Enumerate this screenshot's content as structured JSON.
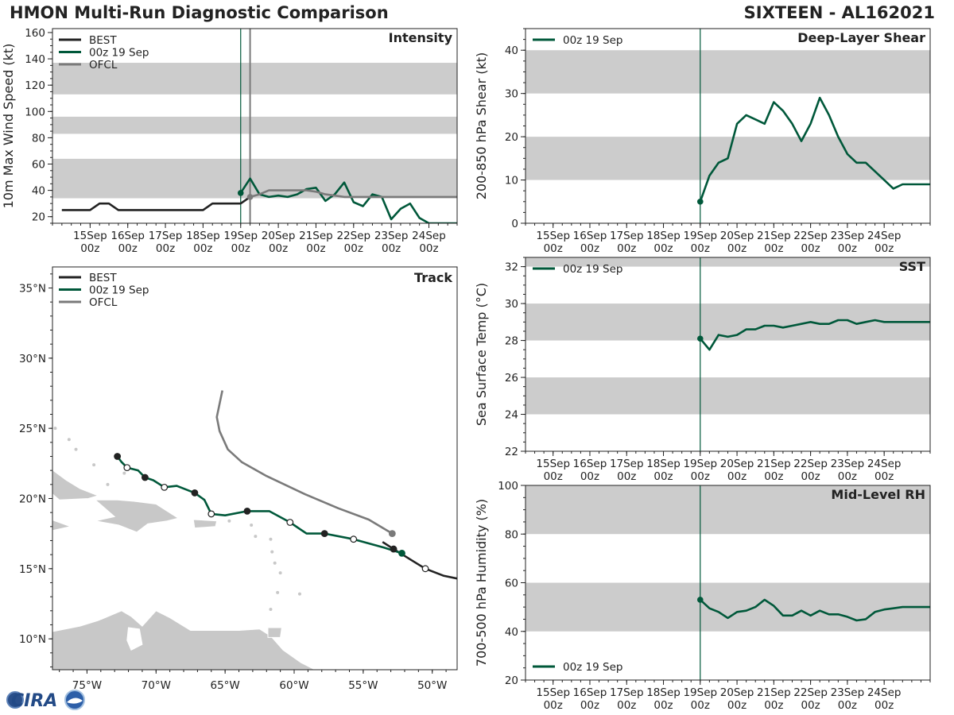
{
  "header": {
    "title_left": "HMON Multi-Run Diagnostic Comparison",
    "title_right": "SIXTEEN - AL162021"
  },
  "logo": {
    "text": "CIRA"
  },
  "colors": {
    "best": "#222222",
    "run": "#00583a",
    "ofcl": "#7a7a7a",
    "band": "#cccccc",
    "land": "#c8c8c8"
  },
  "chart_data": [
    {
      "id": "intensity",
      "type": "line",
      "title": "Intensity",
      "ylabel": "10m Max Wind Speed (kt)",
      "ylim": [
        15,
        163
      ],
      "yticks": [
        20,
        40,
        60,
        80,
        100,
        120,
        140,
        160
      ],
      "xlim": [
        -1.0,
        9.75
      ],
      "x_tick_labels": [
        [
          "15Sep",
          "00z"
        ],
        [
          "16Sep",
          "00z"
        ],
        [
          "17Sep",
          "00z"
        ],
        [
          "18Sep",
          "00z"
        ],
        [
          "19Sep",
          "00z"
        ],
        [
          "20Sep",
          "00z"
        ],
        [
          "21Sep",
          "00z"
        ],
        [
          "22Sep",
          "00z"
        ],
        [
          "23Sep",
          "00z"
        ],
        [
          "24Sep",
          "00z"
        ]
      ],
      "bands": [
        [
          34,
          64
        ],
        [
          83,
          96
        ],
        [
          113,
          137
        ]
      ],
      "vlines": [
        {
          "x": 4.0,
          "color": "run"
        },
        {
          "x": 4.25,
          "color": "ofcl"
        }
      ],
      "legend": [
        "BEST",
        "00z 19 Sep",
        "OFCL"
      ],
      "series": [
        {
          "name": "BEST",
          "color": "best",
          "x": [
            -0.75,
            -0.5,
            -0.25,
            0,
            0.25,
            0.5,
            0.75,
            1,
            1.25,
            1.5,
            1.75,
            2,
            2.25,
            2.5,
            2.75,
            3,
            3.25,
            3.5,
            3.75,
            4,
            4.25
          ],
          "y": [
            25,
            25,
            25,
            25,
            30,
            30,
            25,
            25,
            25,
            25,
            25,
            25,
            25,
            25,
            25,
            25,
            30,
            30,
            30,
            30,
            35
          ]
        },
        {
          "name": "00z 19 Sep",
          "color": "run",
          "x": [
            4,
            4.25,
            4.5,
            4.75,
            5,
            5.25,
            5.5,
            5.75,
            6,
            6.25,
            6.5,
            6.75,
            7,
            7.25,
            7.5,
            7.75,
            8,
            8.25,
            8.5,
            8.75,
            9,
            9.25,
            9.5,
            9.75
          ],
          "y": [
            38,
            49,
            37,
            35,
            36,
            35,
            37,
            41,
            42,
            32,
            37,
            46,
            31,
            28,
            37,
            35,
            18,
            26,
            30,
            19,
            15,
            15,
            15,
            15
          ],
          "start_marker": true
        },
        {
          "name": "OFCL",
          "color": "ofcl",
          "x": [
            4.25,
            4.5,
            4.75,
            5,
            5.25,
            5.5,
            5.75,
            6,
            6.25,
            6.5,
            6.75,
            7,
            7.25,
            7.5,
            7.75,
            8,
            8.25,
            8.5,
            8.75,
            9,
            9.25,
            9.5,
            9.75
          ],
          "y": [
            35,
            37,
            40,
            40,
            40,
            40,
            40,
            39,
            37,
            36,
            35,
            35,
            35,
            35,
            35,
            35,
            35,
            35,
            35,
            35,
            35,
            35,
            35
          ],
          "start_marker": true
        }
      ]
    },
    {
      "id": "shear",
      "type": "line",
      "title": "Deep-Layer Shear",
      "ylabel": "200-850 hPa Shear (kt)",
      "ylim": [
        0,
        45
      ],
      "yticks": [
        0,
        10,
        20,
        30,
        40
      ],
      "xlim": [
        -0.75,
        10.25
      ],
      "x_tick_labels": [
        [
          "15Sep",
          "00z"
        ],
        [
          "16Sep",
          "00z"
        ],
        [
          "17Sep",
          "00z"
        ],
        [
          "18Sep",
          "00z"
        ],
        [
          "19Sep",
          "00z"
        ],
        [
          "20Sep",
          "00z"
        ],
        [
          "21Sep",
          "00z"
        ],
        [
          "22Sep",
          "00z"
        ],
        [
          "23Sep",
          "00z"
        ],
        [
          "24Sep",
          "00z"
        ]
      ],
      "bands": [
        [
          10,
          20
        ],
        [
          30,
          40
        ]
      ],
      "vlines": [
        {
          "x": 4.0,
          "color": "run"
        }
      ],
      "legend": [
        "00z 19 Sep"
      ],
      "series": [
        {
          "name": "00z 19 Sep",
          "color": "run",
          "x": [
            4,
            4.25,
            4.5,
            4.75,
            5,
            5.25,
            5.5,
            5.75,
            6,
            6.25,
            6.5,
            6.75,
            7,
            7.25,
            7.5,
            7.75,
            8,
            8.25,
            8.5,
            8.75,
            9,
            9.25,
            9.5,
            9.75,
            10,
            10.25
          ],
          "y": [
            5,
            11,
            14,
            15,
            23,
            25,
            24,
            23,
            28,
            26,
            23,
            19,
            23,
            29,
            25,
            20,
            16,
            14,
            14,
            12,
            10,
            8,
            9,
            9,
            9,
            9
          ],
          "start_marker": true
        }
      ]
    },
    {
      "id": "sst",
      "type": "line",
      "title": "SST",
      "ylabel": "Sea Surface Temp (°C)",
      "ylim": [
        22,
        32.5
      ],
      "yticks": [
        22,
        24,
        26,
        28,
        30,
        32
      ],
      "xlim": [
        -0.75,
        10.25
      ],
      "x_tick_labels": [
        [
          "15Sep",
          "00z"
        ],
        [
          "16Sep",
          "00z"
        ],
        [
          "17Sep",
          "00z"
        ],
        [
          "18Sep",
          "00z"
        ],
        [
          "19Sep",
          "00z"
        ],
        [
          "20Sep",
          "00z"
        ],
        [
          "21Sep",
          "00z"
        ],
        [
          "22Sep",
          "00z"
        ],
        [
          "23Sep",
          "00z"
        ],
        [
          "24Sep",
          "00z"
        ]
      ],
      "bands": [
        [
          24,
          26
        ],
        [
          28,
          30
        ],
        [
          32,
          34
        ]
      ],
      "vlines": [
        {
          "x": 4.0,
          "color": "run"
        }
      ],
      "legend": [
        "00z 19 Sep"
      ],
      "series": [
        {
          "name": "00z 19 Sep",
          "color": "run",
          "x": [
            4,
            4.25,
            4.5,
            4.75,
            5,
            5.25,
            5.5,
            5.75,
            6,
            6.25,
            6.5,
            6.75,
            7,
            7.25,
            7.5,
            7.75,
            8,
            8.25,
            8.5,
            8.75,
            9,
            9.25,
            9.5,
            9.75,
            10,
            10.25
          ],
          "y": [
            28.1,
            27.5,
            28.3,
            28.2,
            28.3,
            28.6,
            28.6,
            28.8,
            28.8,
            28.7,
            28.8,
            28.9,
            29.0,
            28.9,
            28.9,
            29.1,
            29.1,
            28.9,
            29.0,
            29.1,
            29.0,
            29.0,
            29.0,
            29.0,
            29.0,
            29.0
          ],
          "start_marker": true
        }
      ]
    },
    {
      "id": "rh",
      "type": "line",
      "title": "Mid-Level RH",
      "ylabel": "700-500 hPa Humidity (%)",
      "ylim": [
        20,
        100
      ],
      "yticks": [
        20,
        40,
        60,
        80,
        100
      ],
      "xlim": [
        -0.75,
        10.25
      ],
      "x_tick_labels": [
        [
          "15Sep",
          "00z"
        ],
        [
          "16Sep",
          "00z"
        ],
        [
          "17Sep",
          "00z"
        ],
        [
          "18Sep",
          "00z"
        ],
        [
          "19Sep",
          "00z"
        ],
        [
          "20Sep",
          "00z"
        ],
        [
          "21Sep",
          "00z"
        ],
        [
          "22Sep",
          "00z"
        ],
        [
          "23Sep",
          "00z"
        ],
        [
          "24Sep",
          "00z"
        ]
      ],
      "bands": [
        [
          40,
          60
        ],
        [
          80,
          100
        ]
      ],
      "vlines": [
        {
          "x": 4.0,
          "color": "run"
        }
      ],
      "legend": [
        "00z 19 Sep"
      ],
      "legend_pos": "bottom-left",
      "series": [
        {
          "name": "00z 19 Sep",
          "color": "run",
          "x": [
            4,
            4.25,
            4.5,
            4.75,
            5,
            5.25,
            5.5,
            5.75,
            6,
            6.25,
            6.5,
            6.75,
            7,
            7.25,
            7.5,
            7.75,
            8,
            8.25,
            8.5,
            8.75,
            9,
            9.25,
            9.5,
            9.75,
            10,
            10.25
          ],
          "y": [
            53,
            49.5,
            48,
            45.5,
            48,
            48.5,
            50,
            53,
            50.5,
            46.5,
            46.5,
            48.5,
            46.5,
            48.5,
            47,
            47,
            46,
            44.5,
            45,
            48,
            49,
            49.5,
            50,
            50,
            50,
            50
          ],
          "start_marker": true
        }
      ]
    },
    {
      "id": "track",
      "type": "scatter",
      "title": "Track",
      "xlim": [
        -77.5,
        -48.2
      ],
      "ylim": [
        7.8,
        36.5
      ],
      "x_tick_labels": [
        "75°W",
        "70°W",
        "65°W",
        "60°W",
        "55°W",
        "50°W"
      ],
      "x_tick_values": [
        -75,
        -70,
        -65,
        -60,
        -55,
        -50
      ],
      "y_tick_labels": [
        "10°N",
        "15°N",
        "20°N",
        "25°N",
        "30°N",
        "35°N"
      ],
      "y_tick_values": [
        10,
        15,
        20,
        25,
        30,
        35
      ],
      "legend": [
        "BEST",
        "00z 19 Sep",
        "OFCL"
      ],
      "best_track": [
        [
          -48.2,
          14.3
        ],
        [
          -49.2,
          14.5
        ],
        [
          -50.5,
          15.0
        ],
        [
          -51.5,
          15.6
        ],
        [
          -52.8,
          16.4
        ],
        [
          -53.6,
          16.9
        ]
      ],
      "best_markers": [
        [
          -50.5,
          15.0,
          "open"
        ],
        [
          -52.8,
          16.4,
          "filled"
        ]
      ],
      "run_track": [
        [
          -52.2,
          16.1
        ],
        [
          -53.5,
          16.5
        ],
        [
          -55.7,
          17.1
        ],
        [
          -57.8,
          17.5
        ],
        [
          -59.1,
          17.5
        ],
        [
          -60.3,
          18.3
        ],
        [
          -61.8,
          19.1
        ],
        [
          -63.4,
          19.1
        ],
        [
          -65.0,
          18.8
        ],
        [
          -66.0,
          18.9
        ],
        [
          -66.5,
          19.9
        ],
        [
          -67.2,
          20.4
        ],
        [
          -68.5,
          20.9
        ],
        [
          -69.4,
          20.8
        ],
        [
          -70.2,
          21.3
        ],
        [
          -70.8,
          21.5
        ],
        [
          -71.3,
          22.0
        ],
        [
          -72.1,
          22.2
        ],
        [
          -72.5,
          22.6
        ],
        [
          -72.8,
          23.0
        ]
      ],
      "run_markers": [
        [
          -52.2,
          16.1,
          "run"
        ],
        [
          -55.7,
          17.1,
          "open"
        ],
        [
          -57.8,
          17.5,
          "filled"
        ],
        [
          -60.3,
          18.3,
          "open"
        ],
        [
          -63.4,
          19.1,
          "filled"
        ],
        [
          -66.0,
          18.9,
          "open"
        ],
        [
          -67.2,
          20.4,
          "filled"
        ],
        [
          -69.4,
          20.8,
          "open"
        ],
        [
          -70.8,
          21.5,
          "filled"
        ],
        [
          -72.1,
          22.2,
          "open"
        ],
        [
          -72.8,
          23.0,
          "filled"
        ]
      ],
      "ofcl_track": [
        [
          -52.9,
          17.5
        ],
        [
          -54.6,
          18.5
        ],
        [
          -56.8,
          19.3
        ],
        [
          -59.2,
          20.3
        ],
        [
          -62.0,
          21.6
        ],
        [
          -63.8,
          22.6
        ],
        [
          -64.8,
          23.5
        ],
        [
          -65.4,
          24.8
        ],
        [
          -65.6,
          25.8
        ],
        [
          -65.2,
          27.7
        ]
      ],
      "ofcl_markers": [
        [
          -52.9,
          17.5,
          "ofcl"
        ]
      ]
    }
  ]
}
